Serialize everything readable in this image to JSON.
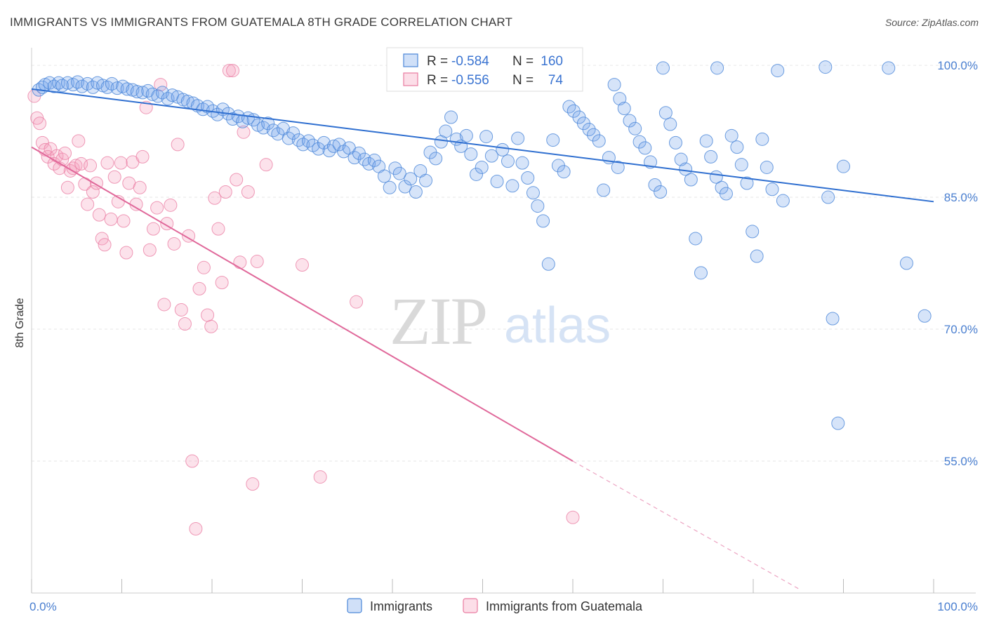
{
  "title": "IMMIGRANTS VS IMMIGRANTS FROM GUATEMALA 8TH GRADE CORRELATION CHART",
  "source": "Source: ZipAtlas.com",
  "watermark": {
    "zip": "ZIP",
    "atlas": "atlas"
  },
  "colors": {
    "blue": "#4a86d8",
    "blue_fill": "rgba(120,165,235,0.30)",
    "blue_line": "#2f6fd0",
    "pink": "#e97aa0",
    "pink_fill": "rgba(245,160,190,0.30)",
    "pink_line": "#e0689a",
    "tick_label": "#4a7fd0",
    "grid": "#e6e6e6"
  },
  "stats": {
    "r_label": "R =",
    "n_label": "N =",
    "series": [
      {
        "r": "-0.584",
        "n": "160"
      },
      {
        "r": "-0.556",
        "n": "74"
      }
    ]
  },
  "legend": {
    "items": [
      "Immigrants",
      "Immigrants from Guatemala"
    ]
  },
  "chart_data": {
    "type": "scatter",
    "xlabel": "",
    "ylabel": "8th Grade",
    "xlim": [
      0,
      100
    ],
    "ylim": [
      40,
      102
    ],
    "x_tick_labels": [
      "0.0%",
      "100.0%"
    ],
    "y_ticks": [
      100,
      85,
      70,
      55
    ],
    "y_tick_labels": [
      "100.0%",
      "85.0%",
      "70.0%",
      "55.0%"
    ],
    "grid": true,
    "legend_position": "bottom-center",
    "series": [
      {
        "name": "Immigrants",
        "trendline": {
          "x0": 0,
          "y0": 97.3,
          "x1": 100,
          "y1": 84.5
        },
        "points": [
          [
            0.8,
            97.2
          ],
          [
            1.2,
            97.5
          ],
          [
            1.5,
            97.8
          ],
          [
            2.0,
            98.0
          ],
          [
            2.5,
            97.6
          ],
          [
            3.0,
            98.0
          ],
          [
            3.4,
            97.7
          ],
          [
            4.0,
            98.0
          ],
          [
            4.6,
            97.8
          ],
          [
            5.1,
            98.1
          ],
          [
            5.6,
            97.6
          ],
          [
            6.2,
            97.9
          ],
          [
            6.8,
            97.5
          ],
          [
            7.3,
            98.0
          ],
          [
            7.9,
            97.7
          ],
          [
            8.4,
            97.5
          ],
          [
            8.9,
            97.9
          ],
          [
            9.5,
            97.4
          ],
          [
            10.1,
            97.6
          ],
          [
            10.6,
            97.3
          ],
          [
            11.2,
            97.2
          ],
          [
            11.7,
            97.0
          ],
          [
            12.3,
            96.9
          ],
          [
            12.9,
            97.1
          ],
          [
            13.4,
            96.7
          ],
          [
            14.0,
            96.5
          ],
          [
            14.5,
            96.9
          ],
          [
            15.1,
            96.2
          ],
          [
            15.6,
            96.6
          ],
          [
            16.2,
            96.4
          ],
          [
            16.8,
            96.1
          ],
          [
            17.3,
            95.9
          ],
          [
            17.9,
            95.7
          ],
          [
            18.4,
            95.4
          ],
          [
            19.0,
            95.0
          ],
          [
            19.5,
            95.3
          ],
          [
            20.1,
            94.8
          ],
          [
            20.6,
            94.4
          ],
          [
            21.2,
            95.0
          ],
          [
            21.8,
            94.5
          ],
          [
            22.3,
            93.9
          ],
          [
            22.9,
            94.2
          ],
          [
            23.4,
            93.6
          ],
          [
            24.0,
            94.0
          ],
          [
            24.6,
            93.8
          ],
          [
            25.1,
            93.2
          ],
          [
            25.7,
            92.9
          ],
          [
            26.2,
            93.4
          ],
          [
            26.8,
            92.6
          ],
          [
            27.3,
            92.2
          ],
          [
            27.9,
            92.8
          ],
          [
            28.5,
            91.7
          ],
          [
            29.0,
            92.3
          ],
          [
            29.6,
            91.5
          ],
          [
            30.1,
            91.0
          ],
          [
            30.7,
            91.4
          ],
          [
            31.2,
            90.9
          ],
          [
            31.8,
            90.5
          ],
          [
            32.4,
            91.2
          ],
          [
            33.0,
            90.3
          ],
          [
            33.5,
            90.8
          ],
          [
            34.1,
            91.0
          ],
          [
            34.6,
            90.2
          ],
          [
            35.2,
            90.6
          ],
          [
            35.8,
            89.5
          ],
          [
            36.3,
            90.0
          ],
          [
            36.9,
            89.3
          ],
          [
            37.4,
            88.8
          ],
          [
            38.0,
            89.2
          ],
          [
            38.5,
            88.5
          ],
          [
            39.1,
            87.4
          ],
          [
            39.7,
            86.1
          ],
          [
            40.3,
            88.3
          ],
          [
            40.8,
            87.7
          ],
          [
            41.4,
            86.2
          ],
          [
            42.0,
            87.1
          ],
          [
            42.6,
            85.6
          ],
          [
            43.1,
            88.0
          ],
          [
            43.7,
            86.9
          ],
          [
            44.2,
            90.1
          ],
          [
            44.8,
            89.4
          ],
          [
            45.4,
            91.3
          ],
          [
            45.9,
            92.5
          ],
          [
            46.5,
            94.1
          ],
          [
            47.1,
            91.6
          ],
          [
            47.6,
            90.8
          ],
          [
            48.2,
            92.0
          ],
          [
            48.7,
            89.9
          ],
          [
            49.3,
            87.6
          ],
          [
            49.9,
            88.4
          ],
          [
            50.4,
            91.9
          ],
          [
            51.0,
            89.7
          ],
          [
            51.6,
            86.8
          ],
          [
            52.2,
            90.4
          ],
          [
            52.8,
            89.1
          ],
          [
            53.3,
            86.3
          ],
          [
            53.9,
            91.7
          ],
          [
            54.4,
            88.9
          ],
          [
            55.0,
            87.2
          ],
          [
            55.6,
            85.5
          ],
          [
            56.1,
            84.0
          ],
          [
            56.7,
            82.3
          ],
          [
            57.3,
            77.4
          ],
          [
            57.8,
            91.5
          ],
          [
            58.4,
            88.6
          ],
          [
            59.0,
            87.9
          ],
          [
            59.6,
            95.3
          ],
          [
            60.1,
            94.8
          ],
          [
            60.7,
            94.1
          ],
          [
            61.2,
            93.4
          ],
          [
            61.8,
            92.7
          ],
          [
            62.3,
            92.1
          ],
          [
            62.9,
            91.4
          ],
          [
            63.4,
            85.8
          ],
          [
            64.0,
            89.5
          ],
          [
            64.6,
            97.8
          ],
          [
            65.2,
            96.2
          ],
          [
            65.7,
            95.1
          ],
          [
            66.3,
            93.7
          ],
          [
            66.9,
            92.8
          ],
          [
            67.4,
            91.3
          ],
          [
            68.0,
            90.6
          ],
          [
            68.6,
            89.0
          ],
          [
            69.1,
            86.4
          ],
          [
            69.7,
            85.6
          ],
          [
            70.3,
            94.6
          ],
          [
            70.8,
            93.3
          ],
          [
            71.4,
            91.2
          ],
          [
            72.0,
            89.3
          ],
          [
            72.5,
            88.2
          ],
          [
            73.1,
            87.0
          ],
          [
            73.6,
            80.3
          ],
          [
            74.2,
            76.4
          ],
          [
            74.8,
            91.4
          ],
          [
            75.3,
            89.6
          ],
          [
            75.9,
            87.3
          ],
          [
            76.5,
            86.1
          ],
          [
            77.0,
            85.4
          ],
          [
            77.6,
            92.0
          ],
          [
            78.2,
            90.7
          ],
          [
            78.7,
            88.7
          ],
          [
            79.3,
            86.6
          ],
          [
            79.9,
            81.1
          ],
          [
            80.4,
            78.3
          ],
          [
            81.0,
            91.6
          ],
          [
            81.5,
            88.4
          ],
          [
            82.1,
            85.9
          ],
          [
            82.7,
            99.4
          ],
          [
            83.3,
            84.6
          ],
          [
            88.3,
            85.0
          ],
          [
            88.8,
            71.2
          ],
          [
            89.4,
            59.3
          ],
          [
            90.0,
            88.5
          ],
          [
            95.0,
            99.7
          ],
          [
            97.0,
            77.5
          ],
          [
            99.0,
            71.5
          ],
          [
            70.0,
            99.7
          ],
          [
            76.0,
            99.7
          ],
          [
            88.0,
            99.8
          ],
          [
            65.0,
            88.4
          ]
        ]
      },
      {
        "name": "Immigrants from Guatemala",
        "trendline": {
          "x0": 0,
          "y0": 90.7,
          "x1": 60,
          "y1": 55.0,
          "dash_to_x": 85,
          "dash_to_y": 40.5
        },
        "points": [
          [
            0.3,
            96.5
          ],
          [
            0.6,
            94.0
          ],
          [
            0.9,
            93.4
          ],
          [
            1.2,
            91.2
          ],
          [
            1.5,
            90.4
          ],
          [
            1.8,
            89.6
          ],
          [
            2.1,
            90.5
          ],
          [
            2.5,
            88.8
          ],
          [
            2.8,
            89.7
          ],
          [
            3.1,
            88.3
          ],
          [
            3.4,
            89.3
          ],
          [
            3.7,
            90.0
          ],
          [
            4.0,
            86.1
          ],
          [
            4.3,
            88.0
          ],
          [
            4.6,
            88.3
          ],
          [
            4.9,
            88.6
          ],
          [
            5.2,
            91.4
          ],
          [
            5.5,
            88.8
          ],
          [
            5.9,
            86.5
          ],
          [
            6.2,
            84.2
          ],
          [
            6.5,
            88.6
          ],
          [
            6.8,
            85.6
          ],
          [
            7.2,
            86.6
          ],
          [
            7.5,
            83.0
          ],
          [
            7.8,
            80.3
          ],
          [
            8.1,
            79.6
          ],
          [
            8.4,
            88.9
          ],
          [
            8.8,
            82.5
          ],
          [
            9.2,
            87.3
          ],
          [
            9.6,
            84.5
          ],
          [
            9.9,
            88.9
          ],
          [
            10.2,
            82.3
          ],
          [
            10.5,
            78.7
          ],
          [
            10.8,
            86.6
          ],
          [
            11.2,
            89.0
          ],
          [
            11.6,
            84.2
          ],
          [
            12.0,
            86.1
          ],
          [
            12.3,
            89.6
          ],
          [
            12.7,
            95.2
          ],
          [
            13.1,
            79.0
          ],
          [
            13.5,
            81.4
          ],
          [
            13.9,
            83.8
          ],
          [
            14.3,
            97.8
          ],
          [
            14.7,
            72.8
          ],
          [
            15.0,
            82.0
          ],
          [
            15.4,
            84.1
          ],
          [
            15.8,
            79.7
          ],
          [
            16.2,
            91.0
          ],
          [
            16.6,
            72.2
          ],
          [
            17.0,
            70.6
          ],
          [
            17.4,
            80.6
          ],
          [
            17.8,
            55.0
          ],
          [
            18.2,
            47.3
          ],
          [
            18.6,
            74.6
          ],
          [
            19.1,
            77.0
          ],
          [
            19.5,
            71.6
          ],
          [
            19.9,
            70.3
          ],
          [
            20.3,
            84.9
          ],
          [
            20.7,
            81.4
          ],
          [
            21.1,
            75.3
          ],
          [
            21.5,
            85.6
          ],
          [
            21.9,
            99.4
          ],
          [
            22.3,
            99.4
          ],
          [
            22.7,
            87.0
          ],
          [
            23.1,
            77.6
          ],
          [
            23.5,
            92.4
          ],
          [
            24.0,
            85.6
          ],
          [
            24.5,
            52.4
          ],
          [
            25.0,
            77.7
          ],
          [
            26.0,
            88.7
          ],
          [
            30.0,
            77.3
          ],
          [
            32.0,
            53.2
          ],
          [
            36.0,
            73.1
          ],
          [
            60.0,
            48.6
          ]
        ]
      }
    ]
  }
}
